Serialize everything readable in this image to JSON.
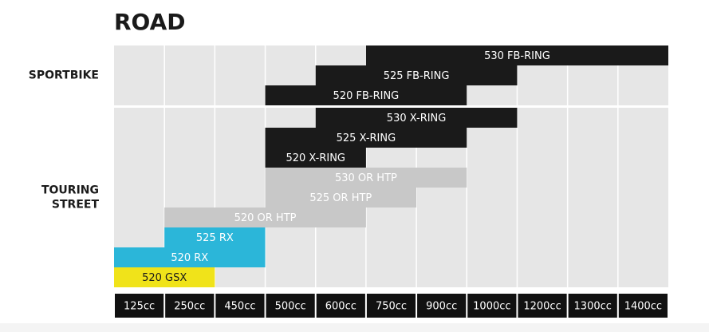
{
  "chart_data": {
    "type": "range-bar",
    "title": "ROAD",
    "categories": [
      "125cc",
      "250cc",
      "450cc",
      "500cc",
      "600cc",
      "750cc",
      "900cc",
      "1000cc",
      "1200cc",
      "1300cc",
      "1400cc"
    ],
    "groups": [
      {
        "label": [
          "SPORTBIKE"
        ],
        "bars": [
          {
            "name": "530 FB-RING",
            "from": "750cc",
            "to": "1400cc",
            "color": "#1a1a1a",
            "text_color": "#ffffff"
          },
          {
            "name": "525 FB-RING",
            "from": "600cc",
            "to": "1000cc",
            "color": "#1a1a1a",
            "text_color": "#ffffff"
          },
          {
            "name": "520 FB-RING",
            "from": "500cc",
            "to": "900cc",
            "color": "#1a1a1a",
            "text_color": "#ffffff"
          }
        ]
      },
      {
        "label": [
          "TOURING",
          "STREET"
        ],
        "bars": [
          {
            "name": "530 X-RING",
            "from": "600cc",
            "to": "1000cc",
            "color": "#1a1a1a",
            "text_color": "#ffffff"
          },
          {
            "name": "525 X-RING",
            "from": "500cc",
            "to": "900cc",
            "color": "#1a1a1a",
            "text_color": "#ffffff"
          },
          {
            "name": "520 X-RING",
            "from": "500cc",
            "to": "600cc",
            "color": "#1a1a1a",
            "text_color": "#ffffff"
          },
          {
            "name": "530 OR HTP",
            "from": "500cc",
            "to": "900cc",
            "color": "#c8c8c8",
            "text_color": "#ffffff"
          },
          {
            "name": "525 OR HTP",
            "from": "500cc",
            "to": "750cc",
            "color": "#c8c8c8",
            "text_color": "#ffffff"
          },
          {
            "name": "520 OR HTP",
            "from": "250cc",
            "to": "600cc",
            "color": "#c8c8c8",
            "text_color": "#ffffff"
          },
          {
            "name": "525 RX",
            "from": "250cc",
            "to": "450cc",
            "color": "#2bb6d9",
            "text_color": "#ffffff"
          },
          {
            "name": "520 RX",
            "from": "125cc",
            "to": "450cc",
            "color": "#2bb6d9",
            "text_color": "#ffffff"
          },
          {
            "name": "520 GSX",
            "from": "125cc",
            "to": "250cc",
            "color": "#f0e31a",
            "text_color": "#1a1a1a"
          }
        ]
      }
    ]
  }
}
